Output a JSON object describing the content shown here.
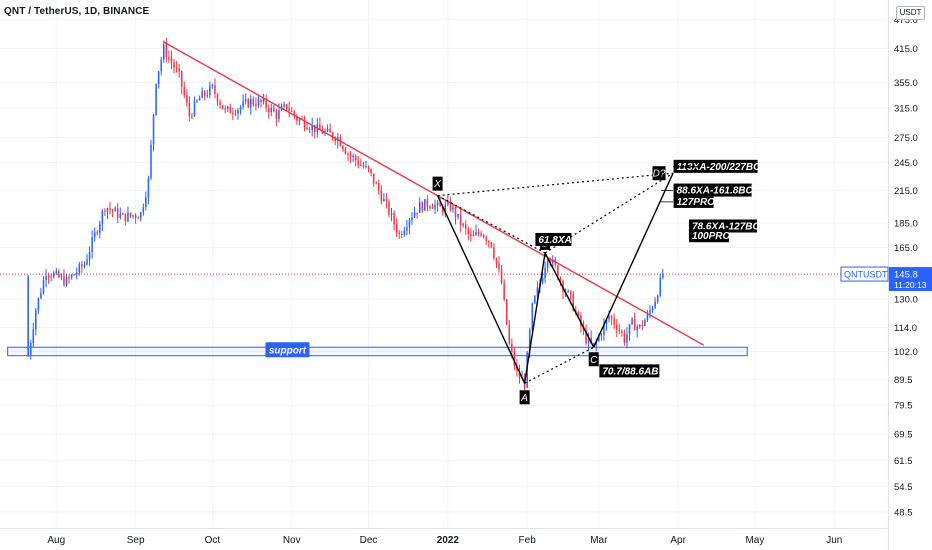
{
  "header": {
    "title": "QNT / TetherUS, 1D, BINANCE"
  },
  "currency_button": "USDT",
  "colors": {
    "up": "#2962ff",
    "down": "#f23645",
    "trend": "#f23645",
    "pattern": "#000000",
    "support": "#2962ff",
    "price_line": "#f23645"
  },
  "chart_data": {
    "type": "candlestick",
    "title": "QNT / TetherUS, 1D, BINANCE",
    "y_scale": "log",
    "ylim": [
      45,
      520
    ],
    "xlim": [
      "2021-07-10",
      "2022-06-22"
    ],
    "y_ticks": [
      "475.0",
      "415.0",
      "355.0",
      "315.0",
      "275.0",
      "245.0",
      "215.0",
      "185.0",
      "165.0",
      "145.8",
      "130.0",
      "114.0",
      "102.0",
      "89.5",
      "79.5",
      "69.5",
      "61.5",
      "54.5",
      "48.5"
    ],
    "x_ticks": [
      {
        "date": "2021-08-01",
        "label": "Aug"
      },
      {
        "date": "2021-09-01",
        "label": "Sep"
      },
      {
        "date": "2021-10-01",
        "label": "Oct"
      },
      {
        "date": "2021-11-01",
        "label": "Nov"
      },
      {
        "date": "2021-12-01",
        "label": "Dec"
      },
      {
        "date": "2022-01-01",
        "label": "2022"
      },
      {
        "date": "2022-02-01",
        "label": "Feb"
      },
      {
        "date": "2022-03-01",
        "label": "Mar"
      },
      {
        "date": "2022-04-01",
        "label": "Apr"
      },
      {
        "date": "2022-05-01",
        "label": "May"
      },
      {
        "date": "2022-06-01",
        "label": "Jun"
      }
    ],
    "price_path": [
      [
        "2021-07-21",
        100
      ],
      [
        "2021-07-24",
        124
      ],
      [
        "2021-07-28",
        148
      ],
      [
        "2021-08-05",
        141
      ],
      [
        "2021-08-12",
        153
      ],
      [
        "2021-08-20",
        200
      ],
      [
        "2021-08-27",
        190
      ],
      [
        "2021-09-03",
        193
      ],
      [
        "2021-09-06",
        225
      ],
      [
        "2021-09-09",
        360
      ],
      [
        "2021-09-12",
        415
      ],
      [
        "2021-09-15",
        390
      ],
      [
        "2021-09-18",
        365
      ],
      [
        "2021-09-22",
        305
      ],
      [
        "2021-09-26",
        330
      ],
      [
        "2021-10-01",
        345
      ],
      [
        "2021-10-06",
        310
      ],
      [
        "2021-10-11",
        315
      ],
      [
        "2021-10-16",
        325
      ],
      [
        "2021-10-21",
        322
      ],
      [
        "2021-10-26",
        305
      ],
      [
        "2021-10-30",
        318
      ],
      [
        "2021-11-03",
        300
      ],
      [
        "2021-11-07",
        293
      ],
      [
        "2021-11-11",
        285
      ],
      [
        "2021-11-15",
        280
      ],
      [
        "2021-11-19",
        275
      ],
      [
        "2021-11-23",
        255
      ],
      [
        "2021-11-27",
        245
      ],
      [
        "2021-12-01",
        235
      ],
      [
        "2021-12-05",
        215
      ],
      [
        "2021-12-09",
        195
      ],
      [
        "2021-12-13",
        175
      ],
      [
        "2021-12-17",
        190
      ],
      [
        "2021-12-21",
        200
      ],
      [
        "2021-12-25",
        203
      ],
      [
        "2021-12-29",
        198
      ],
      [
        "2022-01-02",
        200
      ],
      [
        "2022-01-06",
        185
      ],
      [
        "2022-01-10",
        172
      ],
      [
        "2022-01-14",
        178
      ],
      [
        "2022-01-18",
        168
      ],
      [
        "2022-01-22",
        140
      ],
      [
        "2022-01-25",
        105
      ],
      [
        "2022-01-28",
        92
      ],
      [
        "2022-01-31",
        88
      ],
      [
        "2022-02-03",
        125
      ],
      [
        "2022-02-06",
        140
      ],
      [
        "2022-02-09",
        160
      ],
      [
        "2022-02-12",
        150
      ],
      [
        "2022-02-15",
        138
      ],
      [
        "2022-02-18",
        130
      ],
      [
        "2022-02-21",
        118
      ],
      [
        "2022-02-24",
        108
      ],
      [
        "2022-02-27",
        104
      ],
      [
        "2022-03-02",
        112
      ],
      [
        "2022-03-05",
        120
      ],
      [
        "2022-03-08",
        115
      ],
      [
        "2022-03-11",
        108
      ],
      [
        "2022-03-14",
        116
      ],
      [
        "2022-03-17",
        114
      ],
      [
        "2022-03-20",
        120
      ],
      [
        "2022-03-23",
        130
      ],
      [
        "2022-03-26",
        146
      ]
    ],
    "trendline": {
      "p1": [
        "2021-09-12",
        428
      ],
      "p2": [
        "2022-04-11",
        105
      ]
    },
    "support_zone": {
      "low": 100,
      "high": 104,
      "start": "2021-07-13",
      "end": "2022-04-28",
      "label": "support"
    },
    "harmonic_points": [
      {
        "name": "X",
        "date": "2021-12-28",
        "price": 210
      },
      {
        "name": "A",
        "date": "2022-01-31",
        "price": 88
      },
      {
        "name": "B",
        "date": "2022-02-08",
        "price": 161
      },
      {
        "name": "C",
        "date": "2022-02-27",
        "price": 104
      },
      {
        "name": "D?",
        "date": "2022-03-30",
        "price": 233
      }
    ],
    "annotations": [
      {
        "text": "61.8XA",
        "date": "2022-02-05",
        "price": 171
      },
      {
        "text": "70.7/88.6AB",
        "date": "2022-03-02",
        "price": 93
      },
      {
        "text": "113XA-200/227BC",
        "date": "2022-03-31",
        "price": 240
      },
      {
        "text": "88.6XA-161.8BC",
        "date": "2022-03-31",
        "price": 215
      },
      {
        "text": "127PRO",
        "date": "2022-03-31",
        "price": 204
      },
      {
        "text": "78.6XA-127BC",
        "date": "2022-04-06",
        "price": 182
      },
      {
        "text": "100PRO",
        "date": "2022-04-06",
        "price": 174
      }
    ],
    "last_price": {
      "symbol": "QNTUSDT",
      "value": "145.8",
      "countdown": "11:20:13",
      "price": 146
    }
  }
}
